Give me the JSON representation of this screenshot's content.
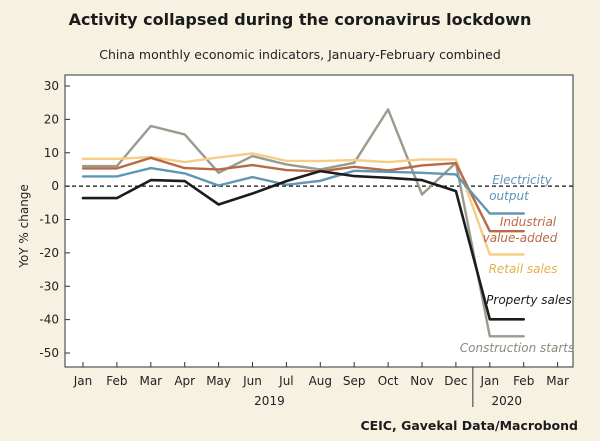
{
  "title": "Activity collapsed during the coronavirus lockdown",
  "subtitle": "China monthly economic indicators, January-February combined",
  "source": "CEIC, Gavekal Data/Macrobond",
  "chart_data": {
    "type": "line",
    "ylabel": "YoY % change",
    "ylim": [
      -50,
      30
    ],
    "yticks": [
      "30",
      "20",
      "10",
      "0",
      "-10",
      "-20",
      "-30",
      "-40",
      "-50"
    ],
    "x_labels": [
      "Jan",
      "Feb",
      "Mar",
      "Apr",
      "May",
      "Jun",
      "Jul",
      "Aug",
      "Sep",
      "Oct",
      "Nov",
      "Dec",
      "Jan",
      "Feb",
      "Mar"
    ],
    "year_labels": [
      "2019",
      "2020"
    ],
    "x": [
      "2019-01",
      "2019-02",
      "2019-03",
      "2019-04",
      "2019-05",
      "2019-06",
      "2019-07",
      "2019-08",
      "2019-09",
      "2019-10",
      "2019-11",
      "2019-12",
      "2020-01",
      "2020-02"
    ],
    "zero_line": "dashed",
    "series": [
      {
        "name": "Construction starts",
        "color": "#999b8c",
        "values": [
          6,
          6,
          18,
          15.5,
          4,
          9,
          6.5,
          5,
          7,
          23,
          -2.5,
          7,
          -45,
          -45
        ]
      },
      {
        "name": "Retail sales",
        "color": "#f5cd85",
        "values": [
          8.2,
          8.2,
          8.7,
          7.2,
          8.6,
          9.8,
          7.6,
          7.5,
          7.8,
          7.2,
          8,
          8,
          -20.5,
          -20.5
        ]
      },
      {
        "name": "Industrial value-added",
        "color": "#b96a45",
        "values": [
          5.3,
          5.3,
          8.5,
          5.4,
          5,
          6.3,
          4.8,
          4.4,
          5.8,
          4.7,
          6.2,
          6.9,
          -13.5,
          -13.5
        ]
      },
      {
        "name": "Electricity output",
        "color": "#5e96b4",
        "values": [
          2.9,
          2.9,
          5.4,
          3.8,
          0.2,
          2.7,
          0.4,
          1.6,
          4.6,
          4.3,
          4,
          3.5,
          -8.2,
          -8.2
        ]
      },
      {
        "name": "Property sales",
        "color": "#1c1c1c",
        "values": [
          -3.6,
          -3.6,
          1.8,
          1.5,
          -5.5,
          -2.2,
          1.5,
          4.5,
          3,
          2.5,
          1.8,
          -1.5,
          -39.9,
          -39.9
        ]
      }
    ]
  }
}
